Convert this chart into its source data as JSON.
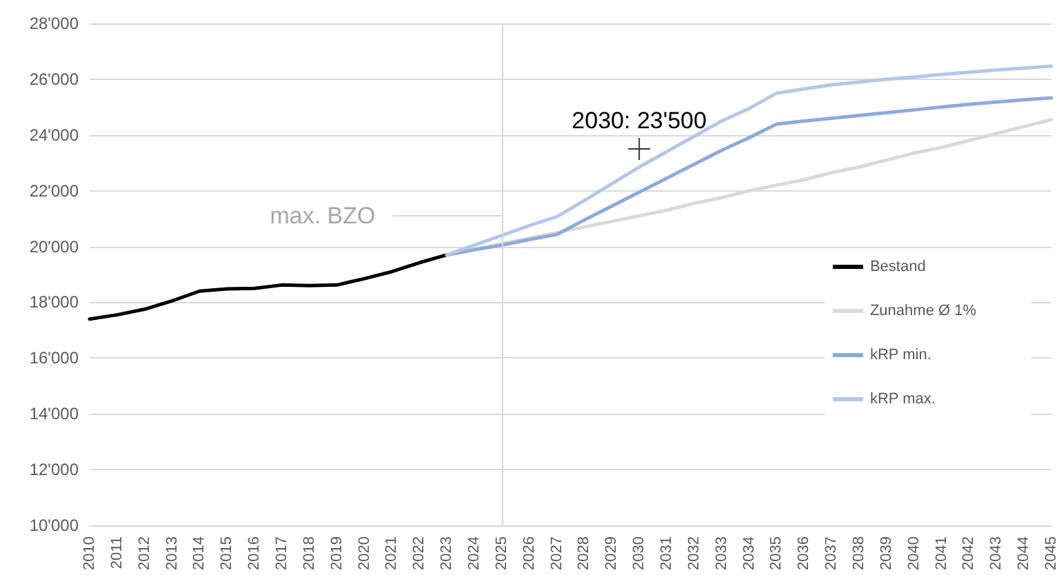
{
  "chart_data": {
    "type": "line",
    "categories": [
      "2010",
      "2011",
      "2012",
      "2013",
      "2014",
      "2015",
      "2016",
      "2017",
      "2018",
      "2019",
      "2020",
      "2021",
      "2022",
      "2023",
      "2024",
      "2025",
      "2026",
      "2027",
      "2028",
      "2029",
      "2030",
      "2031",
      "2032",
      "2033",
      "2034",
      "2035",
      "2036",
      "2037",
      "2038",
      "2039",
      "2040",
      "2041",
      "2042",
      "2043",
      "2044",
      "2045"
    ],
    "series": [
      {
        "name": "Bestand",
        "color": "#000000",
        "values": [
          17400,
          17550,
          17750,
          18050,
          18400,
          18480,
          18500,
          18620,
          18600,
          18620,
          18850,
          19100,
          19420,
          19700,
          null,
          null,
          null,
          null,
          null,
          null,
          null,
          null,
          null,
          null,
          null,
          null,
          null,
          null,
          null,
          null,
          null,
          null,
          null,
          null,
          null,
          null
        ]
      },
      {
        "name": "Zunahme Ø 1%",
        "color": "#d9d9d9",
        "values": [
          null,
          null,
          null,
          null,
          null,
          null,
          null,
          null,
          null,
          null,
          null,
          null,
          null,
          19700,
          19900,
          20100,
          20300,
          20500,
          20700,
          20900,
          21100,
          21300,
          21550,
          21750,
          22000,
          22200,
          22400,
          22650,
          22850,
          23100,
          23350,
          23550,
          23800,
          24050,
          24300,
          24550
        ]
      },
      {
        "name": "kRP min.",
        "color": "#8eaadb",
        "values": [
          null,
          null,
          null,
          null,
          null,
          null,
          null,
          null,
          null,
          null,
          null,
          null,
          null,
          19700,
          19880,
          20050,
          20250,
          20430,
          20950,
          21450,
          21950,
          22450,
          22950,
          23450,
          23900,
          24390,
          24500,
          24600,
          24700,
          24800,
          24900,
          25000,
          25100,
          25180,
          25260,
          25330
        ]
      },
      {
        "name": "kRP max.",
        "color": "#b4c7e7",
        "values": [
          null,
          null,
          null,
          null,
          null,
          null,
          null,
          null,
          null,
          null,
          null,
          null,
          null,
          19700,
          20050,
          20400,
          20750,
          21070,
          21650,
          22250,
          22850,
          23400,
          23950,
          24500,
          24950,
          25500,
          25650,
          25800,
          25900,
          26000,
          26080,
          26170,
          26250,
          26330,
          26400,
          26470
        ]
      },
      {
        "type": "scatter",
        "marker": "cross",
        "color": "#000000",
        "values": [
          null,
          null,
          null,
          null,
          null,
          null,
          null,
          null,
          null,
          null,
          null,
          null,
          null,
          null,
          null,
          null,
          null,
          null,
          null,
          null,
          23500,
          null,
          null,
          null,
          null,
          null,
          null,
          null,
          null,
          null,
          null,
          null,
          null,
          null,
          null,
          null
        ]
      }
    ],
    "ylim": [
      10000,
      28000
    ],
    "yticks": [
      {
        "value": 10000,
        "label": "10'000"
      },
      {
        "value": 12000,
        "label": "12'000"
      },
      {
        "value": 14000,
        "label": "14'000"
      },
      {
        "value": 16000,
        "label": "16'000"
      },
      {
        "value": 18000,
        "label": "18'000"
      },
      {
        "value": 20000,
        "label": "20'000"
      },
      {
        "value": 22000,
        "label": "22'000"
      },
      {
        "value": 24000,
        "label": "24'000"
      },
      {
        "value": 26000,
        "label": "26'000"
      },
      {
        "value": 28000,
        "label": "28'000"
      }
    ],
    "annotations": [
      {
        "text": "2030: 23'500",
        "x": "2030",
        "y": 23500
      }
    ],
    "ref_lines": [
      {
        "axis": "x",
        "value": "2025",
        "color": "#d9d9d9"
      },
      {
        "axis": "y",
        "value": 21100,
        "label": "max. BZO",
        "color": "#d9d9d9"
      }
    ],
    "grid": "y",
    "legend": "right",
    "marker": "none",
    "line_style": "solid"
  }
}
